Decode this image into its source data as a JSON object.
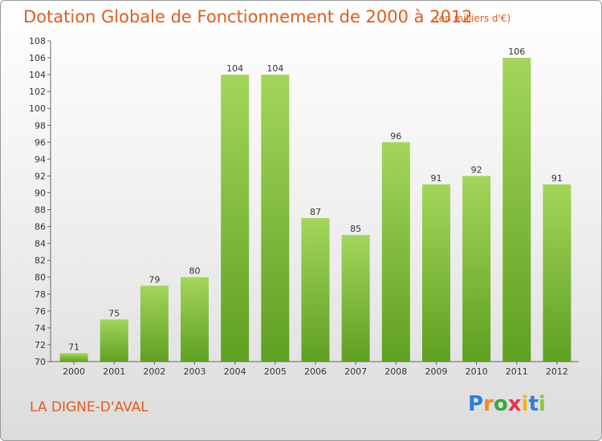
{
  "title": "Dotation Globale de Fonctionnement de 2000 à 2012",
  "subtitle": "(en milliers d'€)",
  "commune": "LA DIGNE-D'AVAL",
  "logo": {
    "letters": [
      "P",
      "r",
      "o",
      "x",
      "i",
      "t",
      "i"
    ],
    "colors": [
      "#2d7fd6",
      "#f08a1c",
      "#3aa83a",
      "#e8364a",
      "#f5b800",
      "#2d7fd6",
      "#8bc34a"
    ]
  },
  "colors": {
    "bar_top": "#a3d65a",
    "bar_bottom": "#5fa021",
    "accent": "#e35b1a"
  },
  "chart_data": {
    "type": "bar",
    "title": "Dotation Globale de Fonctionnement de 2000 à 2012",
    "subtitle": "(en milliers d'€)",
    "categories": [
      "2000",
      "2001",
      "2002",
      "2003",
      "2004",
      "2005",
      "2006",
      "2007",
      "2008",
      "2009",
      "2010",
      "2011",
      "2012"
    ],
    "values": [
      71,
      75,
      79,
      80,
      104,
      104,
      87,
      85,
      96,
      91,
      92,
      106,
      91
    ],
    "ylim": [
      70,
      108
    ],
    "yticks": [
      70,
      72,
      74,
      76,
      78,
      80,
      82,
      84,
      86,
      88,
      90,
      92,
      94,
      96,
      98,
      100,
      102,
      104,
      106,
      108
    ],
    "xlabel": "",
    "ylabel": "",
    "grid": false
  }
}
